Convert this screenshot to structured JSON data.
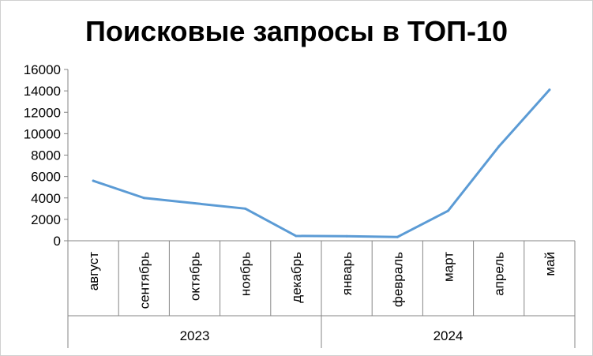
{
  "chart_data": {
    "type": "line",
    "title": "Поисковые запросы в ТОП-10",
    "xlabel": "",
    "ylabel": "",
    "ylim": [
      0,
      16000
    ],
    "yticks": [
      "0",
      "2000",
      "4000",
      "6000",
      "8000",
      "10000",
      "12000",
      "14000",
      "16000"
    ],
    "categories": [
      "август",
      "сентябрь",
      "октябрь",
      "ноябрь",
      "декабрь",
      "январь",
      "февраль",
      "март",
      "апрель",
      "май"
    ],
    "groups": [
      {
        "label": "2023",
        "start": 0,
        "count": 5
      },
      {
        "label": "2024",
        "start": 5,
        "count": 5
      }
    ],
    "series": [
      {
        "values": [
          5600,
          4000,
          3500,
          3000,
          450,
          420,
          350,
          2800,
          8800,
          14100
        ],
        "color": "#5b9bd5"
      }
    ],
    "grid": false,
    "legend": "none"
  }
}
